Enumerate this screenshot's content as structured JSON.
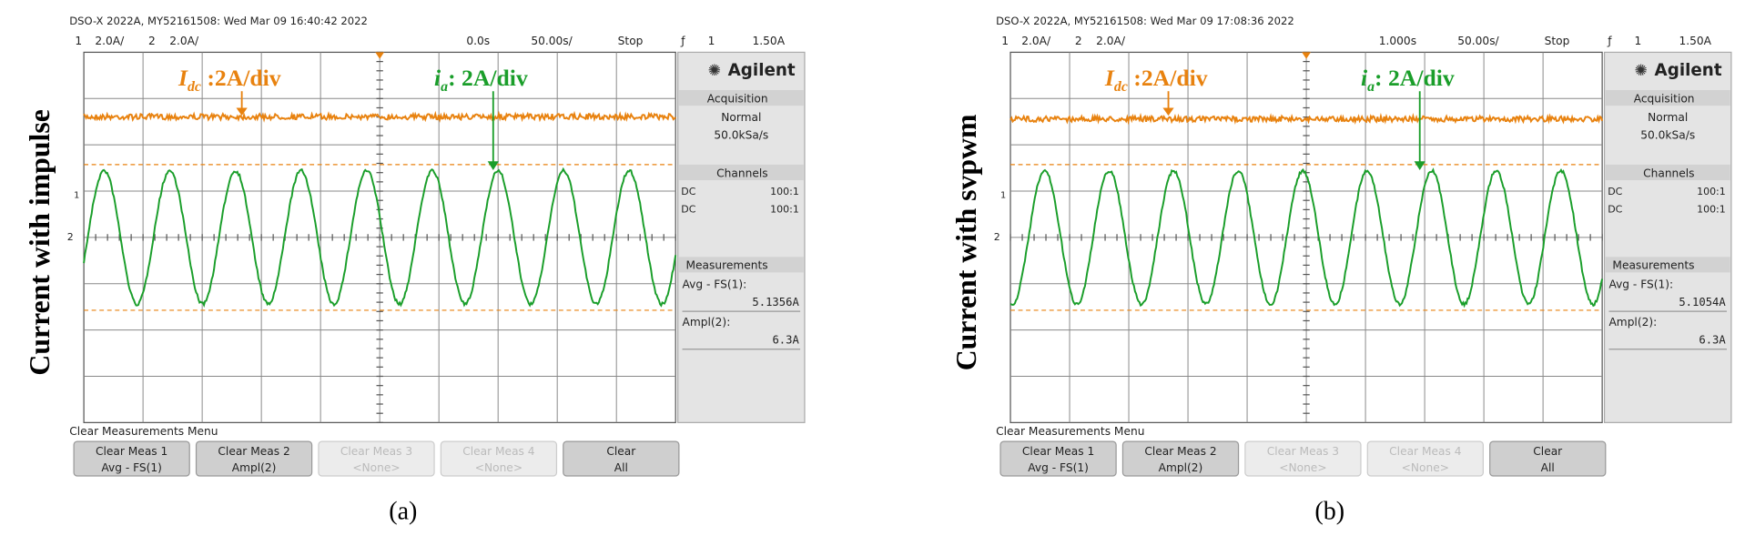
{
  "panels": [
    {
      "header": "DSO-X 2022A, MY52161508: Wed Mar 09 16:40:42 2022",
      "ch1": "1",
      "ch1_scale": "2.0A/",
      "ch2": "2",
      "ch2_scale": "2.0A/",
      "time_offset": "0.0s",
      "time_scale": "50.00s/",
      "run_state": "Stop",
      "trigger_icon": "ƒ",
      "trigger_source": "1",
      "trigger_level": "1.50A",
      "side_label": "Current with impulse",
      "annotation_dc": {
        "symbol": "I",
        "subscript": "dc",
        "text": " :2A/div"
      },
      "annotation_a": {
        "symbol": "i",
        "subscript": "a",
        "text": ": 2A/div"
      },
      "brand": "Agilent",
      "acquisition": {
        "title": "Acquisition",
        "mode": "Normal",
        "rate": "50.0kSa/s"
      },
      "channels": {
        "title": "Channels",
        "rows": [
          [
            "DC",
            "100:1"
          ],
          [
            "DC",
            "100:1"
          ]
        ]
      },
      "measurements": {
        "title": "Measurements",
        "items": [
          {
            "label": "Avg - FS(1):",
            "value": "5.1356A"
          },
          {
            "label": "Ampl(2):",
            "value": "6.3A"
          }
        ]
      },
      "menu_title": "Clear Measurements Menu",
      "buttons": [
        {
          "line1": "Clear Meas 1",
          "line2": "Avg - FS(1)",
          "enabled": true
        },
        {
          "line1": "Clear Meas 2",
          "line2": "Ampl(2)",
          "enabled": true
        },
        {
          "line1": "Clear Meas 3",
          "line2": "<None>",
          "enabled": false
        },
        {
          "line1": "Clear Meas 4",
          "line2": "<None>",
          "enabled": false
        },
        {
          "line1": "Clear",
          "line2": "All",
          "enabled": true
        }
      ],
      "caption": "(a)"
    },
    {
      "header": "DSO-X 2022A, MY52161508: Wed Mar 09 17:08:36 2022",
      "ch1": "1",
      "ch1_scale": "2.0A/",
      "ch2": "2",
      "ch2_scale": "2.0A/",
      "time_offset": "1.000s",
      "time_scale": "50.00s/",
      "run_state": "Stop",
      "trigger_icon": "ƒ",
      "trigger_source": "1",
      "trigger_level": "1.50A",
      "side_label": "Current with svpwm",
      "annotation_dc": {
        "symbol": "I",
        "subscript": "dc",
        "text": " :2A/div"
      },
      "annotation_a": {
        "symbol": "i",
        "subscript": "a",
        "text": ": 2A/div"
      },
      "brand": "Agilent",
      "acquisition": {
        "title": "Acquisition",
        "mode": "Normal",
        "rate": "50.0kSa/s"
      },
      "channels": {
        "title": "Channels",
        "rows": [
          [
            "DC",
            "100:1"
          ],
          [
            "DC",
            "100:1"
          ]
        ]
      },
      "measurements": {
        "title": "Measurements",
        "items": [
          {
            "label": "Avg - FS(1):",
            "value": "5.1054A"
          },
          {
            "label": "Ampl(2):",
            "value": "6.3A"
          }
        ]
      },
      "menu_title": "Clear Measurements Menu",
      "buttons": [
        {
          "line1": "Clear Meas 1",
          "line2": "Avg - FS(1)",
          "enabled": true
        },
        {
          "line1": "Clear Meas 2",
          "line2": "Ampl(2)",
          "enabled": true
        },
        {
          "line1": "Clear Meas 3",
          "line2": "<None>",
          "enabled": false
        },
        {
          "line1": "Clear Meas 4",
          "line2": "<None>",
          "enabled": false
        },
        {
          "line1": "Clear",
          "line2": "All",
          "enabled": true
        }
      ],
      "caption": "(b)"
    }
  ]
}
